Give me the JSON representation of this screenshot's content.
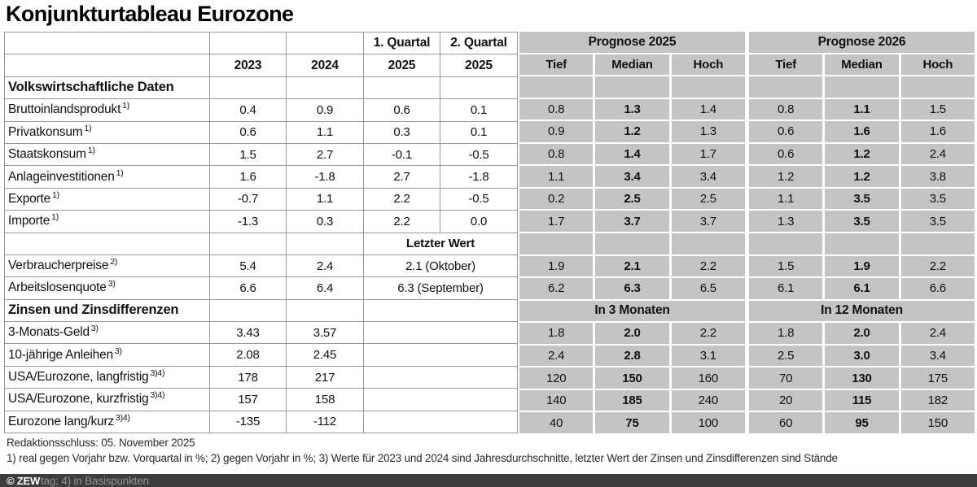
{
  "title": "Konjunkturtableau Eurozone",
  "header": {
    "q1_header": "1. Quartal",
    "q2_header": "2. Quartal",
    "year_2023": "2023",
    "year_2024": "2024",
    "q1_year": "2025",
    "q2_year": "2025",
    "prognose_2025": "Prognose 2025",
    "prognose_2026": "Prognose 2026",
    "tief": "Tief",
    "median": "Median",
    "hoch": "Hoch"
  },
  "rows": [
    {
      "kind": "section",
      "label": "Volkswirtschaftliche Daten",
      "right": {
        "kind": "empty"
      }
    },
    {
      "kind": "data",
      "label": "Bruttoinlandsprodukt",
      "sup": "1)",
      "y2023": "0.4",
      "y2024": "0.9",
      "q1": "0.6",
      "q2": "0.1",
      "right": {
        "kind": "values",
        "v": [
          "0.8",
          "1.3",
          "1.4",
          "0.8",
          "1.1",
          "1.5"
        ]
      }
    },
    {
      "kind": "data",
      "label": "Privatkonsum",
      "sup": "1)",
      "y2023": "0.6",
      "y2024": "1.1",
      "q1": "0.3",
      "q2": "0.1",
      "right": {
        "kind": "values",
        "v": [
          "0.9",
          "1.2",
          "1.3",
          "0.6",
          "1.6",
          "1.6"
        ]
      }
    },
    {
      "kind": "data",
      "label": "Staatskonsum",
      "sup": "1)",
      "y2023": "1.5",
      "y2024": "2.7",
      "q1": "-0.1",
      "q2": "-0.5",
      "right": {
        "kind": "values",
        "v": [
          "0.8",
          "1.4",
          "1.7",
          "0.6",
          "1.2",
          "2.4"
        ]
      }
    },
    {
      "kind": "data",
      "label": "Anlageinvestitionen",
      "sup": "1)",
      "y2023": "1.6",
      "y2024": "-1.8",
      "q1": "2.7",
      "q2": "-1.8",
      "right": {
        "kind": "values",
        "v": [
          "1.1",
          "3.4",
          "3.4",
          "1.2",
          "1.2",
          "3.8"
        ]
      }
    },
    {
      "kind": "data",
      "label": "Exporte",
      "sup": "1)",
      "y2023": "-0.7",
      "y2024": "1.1",
      "q1": "2.2",
      "q2": "-0.5",
      "right": {
        "kind": "values",
        "v": [
          "0.2",
          "2.5",
          "2.5",
          "1.1",
          "3.5",
          "3.5"
        ]
      }
    },
    {
      "kind": "data",
      "label": "Importe",
      "sup": "1)",
      "y2023": "-1.3",
      "y2024": "0.3",
      "q1": "2.2",
      "q2": "0.0",
      "right": {
        "kind": "values",
        "v": [
          "1.7",
          "3.7",
          "3.7",
          "1.3",
          "3.5",
          "3.5"
        ]
      }
    },
    {
      "kind": "merged-label",
      "label": "",
      "y2023": "",
      "y2024": "",
      "q": "Letzter Wert",
      "right": {
        "kind": "empty"
      }
    },
    {
      "kind": "dataq",
      "label": "Verbraucherpreise",
      "sup": "2)",
      "y2023": "5.4",
      "y2024": "2.4",
      "q": "2.1 (Oktober)",
      "right": {
        "kind": "values",
        "v": [
          "1.9",
          "2.1",
          "2.2",
          "1.5",
          "1.9",
          "2.2"
        ]
      }
    },
    {
      "kind": "dataq",
      "label": "Arbeitslosenquote",
      "sup": "3)",
      "y2023": "6.6",
      "y2024": "6.4",
      "q": "6.3 (September)",
      "right": {
        "kind": "values",
        "v": [
          "6.2",
          "6.3",
          "6.5",
          "6.1",
          "6.1",
          "6.6"
        ]
      }
    },
    {
      "kind": "section",
      "merged_q": true,
      "label": "Zinsen und Zinsdifferenzen",
      "right": {
        "kind": "groups",
        "g": [
          "In 3 Monaten",
          "In 12 Monaten"
        ]
      }
    },
    {
      "kind": "dataq",
      "label": "3-Monats-Geld",
      "sup": "3)",
      "y2023": "3.43",
      "y2024": "3.57",
      "q": "",
      "right": {
        "kind": "values",
        "v": [
          "1.8",
          "2.0",
          "2.2",
          "1.8",
          "2.0",
          "2.4"
        ]
      }
    },
    {
      "kind": "dataq",
      "label": "10-jährige Anleihen",
      "sup": "3)",
      "y2023": "2.08",
      "y2024": "2.45",
      "q": "",
      "right": {
        "kind": "values",
        "v": [
          "2.4",
          "2.8",
          "3.1",
          "2.5",
          "3.0",
          "3.4"
        ]
      }
    },
    {
      "kind": "dataq",
      "label": "USA/Eurozone, langfristig",
      "sup": "3)4)",
      "y2023": "178",
      "y2024": "217",
      "q": "",
      "right": {
        "kind": "values",
        "v": [
          "120",
          "150",
          "160",
          "70",
          "130",
          "175"
        ]
      }
    },
    {
      "kind": "dataq",
      "label": "USA/Eurozone, kurzfristig",
      "sup": "3)4)",
      "y2023": "157",
      "y2024": "158",
      "q": "",
      "right": {
        "kind": "values",
        "v": [
          "140",
          "185",
          "240",
          "20",
          "115",
          "182"
        ]
      }
    },
    {
      "kind": "dataq",
      "label": "Eurozone lang/kurz",
      "sup": "3)4)",
      "y2023": "-135",
      "y2024": "-112",
      "q": "",
      "right": {
        "kind": "values",
        "v": [
          "40",
          "75",
          "100",
          "60",
          "95",
          "150"
        ]
      }
    }
  ],
  "footer": {
    "redaktionsschluss": "Redaktionsschluss: 05. November 2025",
    "footnotes": "1) real gegen Vorjahr bzw. Vorquartal in %; 2) gegen Vorjahr in %; 3) Werte für 2023 und 2024 sind Jahresdurchschnitte, letzter Wert der Zinsen und Zinsdifferenzen sind Stände",
    "copyright": "© ZEW",
    "footnote_cut": "tag; 4) in Basispunkten"
  },
  "colors": {
    "cell_gray": "#c4c4c4",
    "grid_line": "#979797",
    "footer_bar": "#3d3d3d"
  }
}
